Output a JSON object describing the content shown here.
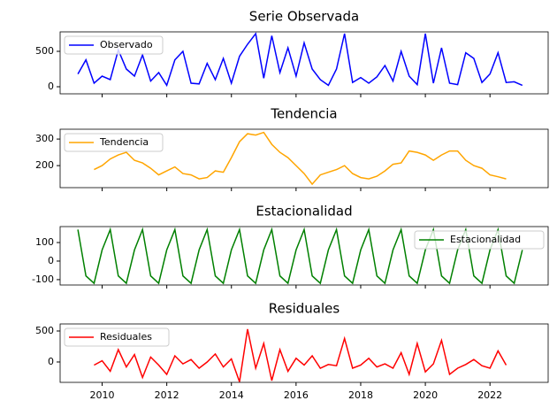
{
  "chart_data": [
    {
      "type": "line",
      "title": "Serie Observada",
      "x": [
        2009.25,
        2009.5,
        2009.75,
        2010,
        2010.25,
        2010.5,
        2010.75,
        2011,
        2011.25,
        2011.5,
        2011.75,
        2012,
        2012.25,
        2012.5,
        2012.75,
        2013,
        2013.25,
        2013.5,
        2013.75,
        2014,
        2014.25,
        2014.5,
        2014.75,
        2015,
        2015.25,
        2015.5,
        2015.75,
        2016,
        2016.25,
        2016.5,
        2016.75,
        2017,
        2017.25,
        2017.5,
        2017.75,
        2018,
        2018.25,
        2018.5,
        2018.75,
        2019,
        2019.25,
        2019.5,
        2019.75,
        2020,
        2020.25,
        2020.5,
        2020.75,
        2021,
        2021.25,
        2021.5,
        2021.75,
        2022,
        2022.25,
        2022.5,
        2022.75,
        2023
      ],
      "series": [
        {
          "name": "Observado",
          "color": "#0000ff",
          "values": [
            180,
            380,
            50,
            150,
            100,
            520,
            250,
            150,
            450,
            80,
            200,
            20,
            380,
            500,
            50,
            40,
            330,
            100,
            400,
            50,
            430,
            600,
            750,
            120,
            720,
            200,
            550,
            150,
            620,
            250,
            100,
            20,
            250,
            750,
            60,
            130,
            50,
            140,
            300,
            80,
            500,
            150,
            30,
            750,
            50,
            550,
            50,
            30,
            480,
            400,
            60,
            180,
            480,
            60,
            70,
            20
          ]
        }
      ],
      "xlim": [
        2008.7,
        2023.8
      ],
      "ylim": [
        -100,
        775
      ],
      "yticks": [
        0,
        500
      ],
      "legend": "upper left"
    },
    {
      "type": "line",
      "title": "Tendencia",
      "x": [
        2009.25,
        2009.5,
        2009.75,
        2010,
        2010.25,
        2010.5,
        2010.75,
        2011,
        2011.25,
        2011.5,
        2011.75,
        2012,
        2012.25,
        2012.5,
        2012.75,
        2013,
        2013.25,
        2013.5,
        2013.75,
        2014,
        2014.25,
        2014.5,
        2014.75,
        2015,
        2015.25,
        2015.5,
        2015.75,
        2016,
        2016.25,
        2016.5,
        2016.75,
        2017,
        2017.25,
        2017.5,
        2017.75,
        2018,
        2018.25,
        2018.5,
        2018.75,
        2019,
        2019.25,
        2019.5,
        2019.75,
        2020,
        2020.25,
        2020.5,
        2020.75,
        2021,
        2021.25,
        2021.5,
        2021.75,
        2022,
        2022.25,
        2022.5,
        2022.75,
        2023
      ],
      "series": [
        {
          "name": "Tendencia",
          "color": "#ffa500",
          "values": [
            null,
            null,
            185,
            200,
            225,
            240,
            250,
            220,
            210,
            190,
            165,
            180,
            195,
            170,
            165,
            150,
            155,
            180,
            175,
            230,
            290,
            320,
            315,
            325,
            280,
            250,
            230,
            200,
            170,
            130,
            165,
            175,
            185,
            200,
            170,
            155,
            150,
            160,
            180,
            205,
            210,
            255,
            250,
            240,
            220,
            240,
            255,
            255,
            220,
            200,
            190,
            165,
            158,
            150,
            null,
            null
          ]
        }
      ],
      "xlim": [
        2008.7,
        2023.8
      ],
      "ylim": [
        117,
        337
      ],
      "yticks": [
        200,
        300
      ],
      "legend": "upper left"
    },
    {
      "type": "line",
      "title": "Estacionalidad",
      "x": [
        2009.25,
        2009.5,
        2009.75,
        2010,
        2010.25,
        2010.5,
        2010.75,
        2011,
        2011.25,
        2011.5,
        2011.75,
        2012,
        2012.25,
        2012.5,
        2012.75,
        2013,
        2013.25,
        2013.5,
        2013.75,
        2014,
        2014.25,
        2014.5,
        2014.75,
        2015,
        2015.25,
        2015.5,
        2015.75,
        2016,
        2016.25,
        2016.5,
        2016.75,
        2017,
        2017.25,
        2017.5,
        2017.75,
        2018,
        2018.25,
        2018.5,
        2018.75,
        2019,
        2019.25,
        2019.5,
        2019.75,
        2020,
        2020.25,
        2020.5,
        2020.75,
        2021,
        2021.25,
        2021.5,
        2021.75,
        2022,
        2022.25,
        2022.5,
        2022.75,
        2023
      ],
      "series": [
        {
          "name": "Estacionalidad",
          "color": "#008000",
          "values": [
            170,
            -80,
            -120,
            60,
            170,
            -80,
            -120,
            60,
            170,
            -80,
            -120,
            60,
            170,
            -80,
            -120,
            60,
            170,
            -80,
            -120,
            60,
            170,
            -80,
            -120,
            60,
            170,
            -80,
            -120,
            60,
            170,
            -80,
            -120,
            60,
            170,
            -80,
            -120,
            60,
            170,
            -80,
            -120,
            60,
            170,
            -80,
            -120,
            60,
            170,
            -80,
            -120,
            60,
            170,
            -80,
            -120,
            60,
            170,
            -80,
            -120,
            60
          ]
        }
      ],
      "xlim": [
        2008.7,
        2023.8
      ],
      "ylim": [
        -129,
        186
      ],
      "yticks": [
        -100,
        0,
        100
      ],
      "legend": "upper right"
    },
    {
      "type": "line",
      "title": "Residuales",
      "x": [
        2009.25,
        2009.5,
        2009.75,
        2010,
        2010.25,
        2010.5,
        2010.75,
        2011,
        2011.25,
        2011.5,
        2011.75,
        2012,
        2012.25,
        2012.5,
        2012.75,
        2013,
        2013.25,
        2013.5,
        2013.75,
        2014,
        2014.25,
        2014.5,
        2014.75,
        2015,
        2015.25,
        2015.5,
        2015.75,
        2016,
        2016.25,
        2016.5,
        2016.75,
        2017,
        2017.25,
        2017.5,
        2017.75,
        2018,
        2018.25,
        2018.5,
        2018.75,
        2019,
        2019.25,
        2019.5,
        2019.75,
        2020,
        2020.25,
        2020.5,
        2020.75,
        2021,
        2021.25,
        2021.5,
        2021.75,
        2022,
        2022.25,
        2022.5,
        2022.75,
        2023
      ],
      "series": [
        {
          "name": "Residuales",
          "color": "#ff0000",
          "values": [
            null,
            null,
            -50,
            20,
            -150,
            200,
            -80,
            120,
            -250,
            80,
            -50,
            -200,
            100,
            -30,
            40,
            -100,
            0,
            130,
            -80,
            50,
            -320,
            530,
            -100,
            300,
            -300,
            200,
            -150,
            60,
            -50,
            100,
            -100,
            -40,
            -60,
            380,
            -100,
            -50,
            60,
            -80,
            -30,
            -100,
            150,
            -200,
            300,
            -160,
            -30,
            350,
            -200,
            -100,
            -40,
            40,
            -60,
            -100,
            180,
            -50,
            null,
            null
          ]
        }
      ],
      "xlim": [
        2008.7,
        2023.8
      ],
      "ylim": [
        -329,
        614
      ],
      "yticks": [
        0,
        500
      ],
      "xticks": [
        2010,
        2012,
        2014,
        2016,
        2018,
        2020,
        2022
      ],
      "legend": "upper left"
    }
  ]
}
